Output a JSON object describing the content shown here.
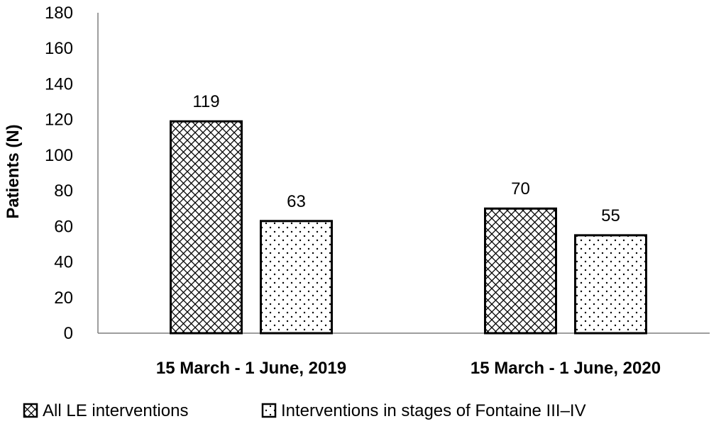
{
  "chart_data": {
    "type": "bar",
    "categories": [
      "15 March - 1 June, 2019",
      "15 March - 1 June, 2020"
    ],
    "series": [
      {
        "name": "All LE interventions",
        "values": [
          119,
          70
        ],
        "pattern": "crosshatch"
      },
      {
        "name": "Interventions in stages of Fontaine III–IV",
        "values": [
          63,
          55
        ],
        "pattern": "dots"
      }
    ],
    "xlabel": "",
    "ylabel": "Patients (N)",
    "ylim": [
      0,
      180
    ],
    "yticks": [
      0,
      20,
      40,
      60,
      80,
      100,
      120,
      140,
      160,
      180
    ],
    "grid": false,
    "legend_position": "bottom",
    "data_labels": true,
    "colors": {
      "bar_fill": "#ffffff",
      "bar_stroke": "#000000",
      "axis": "#7f7f7f"
    }
  }
}
